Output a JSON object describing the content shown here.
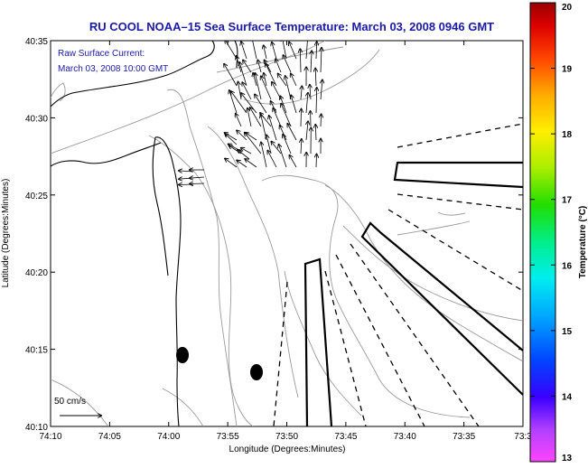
{
  "chart_data": {
    "type": "map",
    "title": "RU COOL  NOAA–15  Sea Surface Temperature:  March 03, 2008 0946 GMT",
    "xlabel": "Longitude (Degrees:Minutes)",
    "ylabel": "Latitude (Degrees:Minutes)",
    "x_ticks": [
      "74:10",
      "74:05",
      "74:00",
      "73:55",
      "73:50",
      "73:45",
      "73:40",
      "73:35",
      "73:3"
    ],
    "y_ticks": [
      "40:35",
      "40:30",
      "40:25",
      "40:20",
      "40:15",
      "40:10"
    ],
    "xlim_minutes_west": [
      10,
      30
    ],
    "ylim_minutes_north": [
      10,
      35
    ],
    "annotation_lines": [
      "Raw Surface Current:",
      "March 03, 2008 10:00 GMT"
    ],
    "scale_label": "50 cm/s",
    "colorbar": {
      "label": "Temperature (°C)",
      "ticks": [
        "20",
        "19",
        "18",
        "17",
        "16",
        "15",
        "14",
        "13"
      ],
      "min": 13,
      "max": 20
    },
    "current_vectors": {
      "count": 120,
      "dominant_direction": "north-northwest",
      "units": "cm/s"
    }
  },
  "colors": {
    "title": "#1a1aa8",
    "note": "#1a1aa8",
    "contour": "#999999",
    "coast": "#000000"
  }
}
